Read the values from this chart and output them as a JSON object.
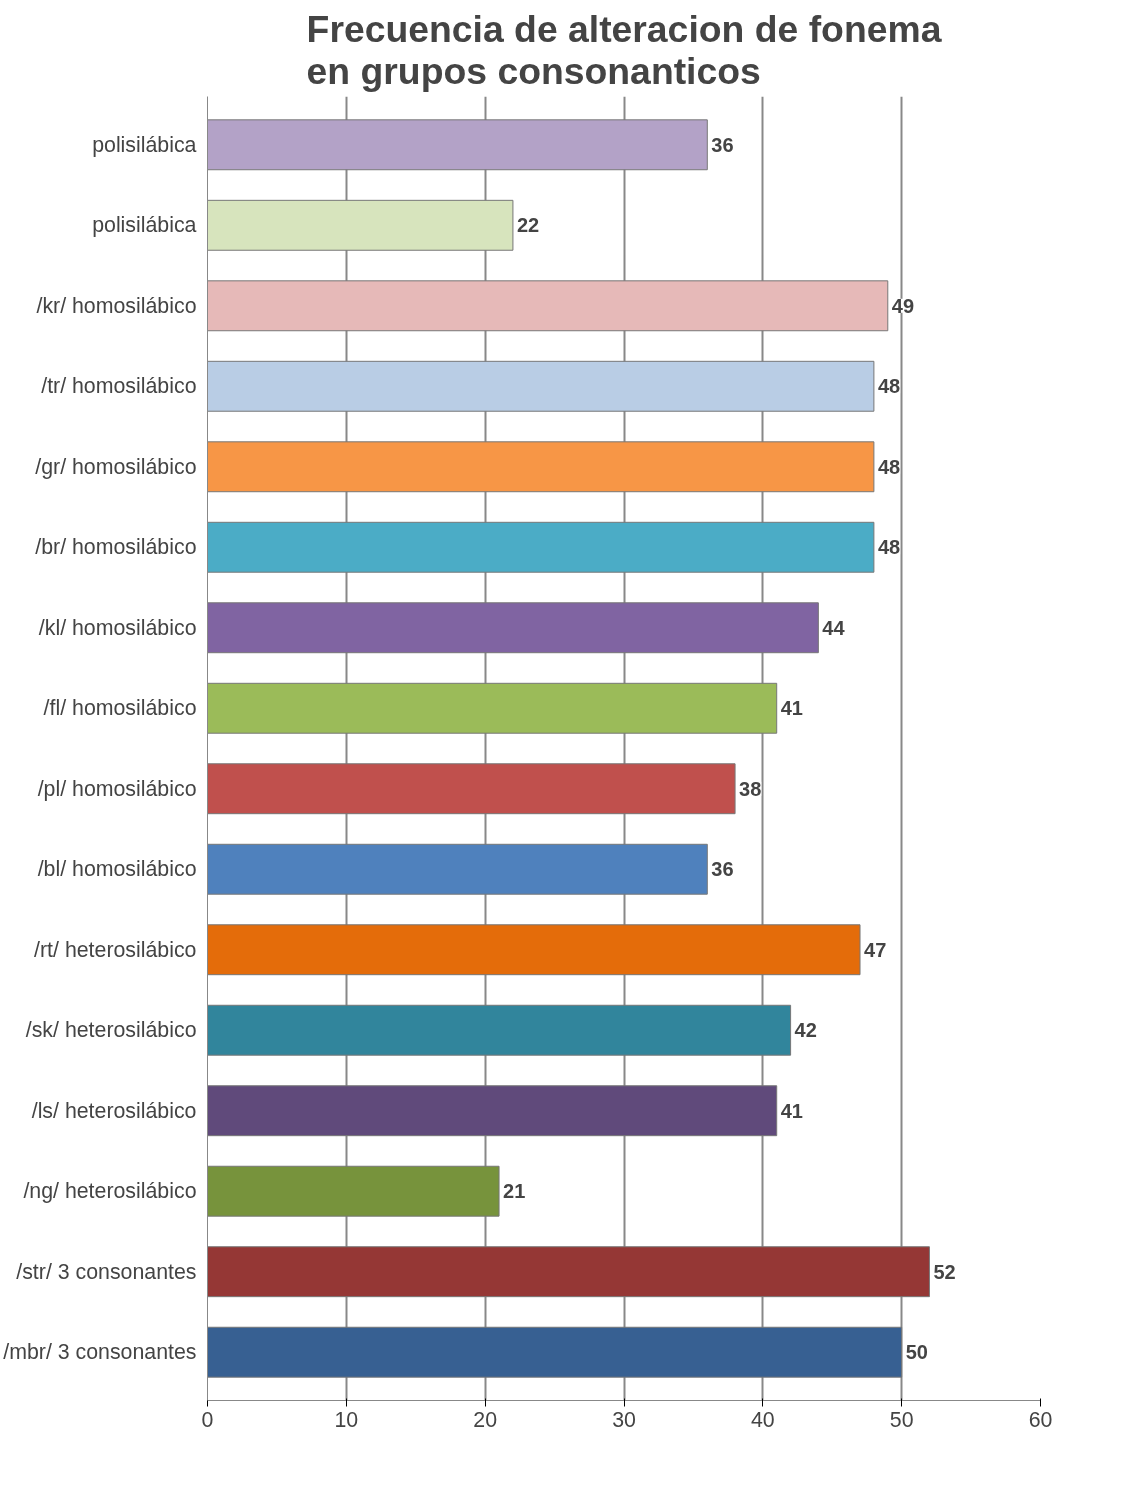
{
  "chart_data": {
    "type": "bar",
    "orientation": "horizontal",
    "title": "Frecuencia de alteracion de fonema en grupos consonanticos",
    "categories": [
      "polisilábica",
      "polisilábica",
      "/kr/ homosilábico",
      "/tr/ homosilábico",
      "/gr/ homosilábico",
      "/br/ homosilábico",
      "/kl/ homosilábico",
      "/fl/ homosilábico",
      "/pl/ homosilábico",
      "/bl/ homosilábico",
      "/rt/ heterosilábico",
      "/sk/ heterosilábico",
      "/ls/ heterosilábico",
      "/ng/ heterosilábico",
      "/str/ 3 consonantes",
      "/mbr/ 3 consonantes"
    ],
    "values": [
      36,
      22,
      49,
      48,
      48,
      48,
      44,
      41,
      38,
      36,
      47,
      42,
      41,
      21,
      52,
      50
    ],
    "colors": [
      "#b3a2c7",
      "#d7e4bd",
      "#e6b9b8",
      "#b9cde5",
      "#f79646",
      "#4bacc6",
      "#8064a2",
      "#9bbb59",
      "#c0504d",
      "#4f81bd",
      "#e46c0a",
      "#31859c",
      "#604a7b",
      "#77933c",
      "#953735",
      "#376092"
    ],
    "xlim": [
      0,
      60
    ],
    "xticks": [
      0,
      10,
      20,
      30,
      40,
      50,
      60
    ],
    "grid": "x",
    "data_labels": true
  }
}
